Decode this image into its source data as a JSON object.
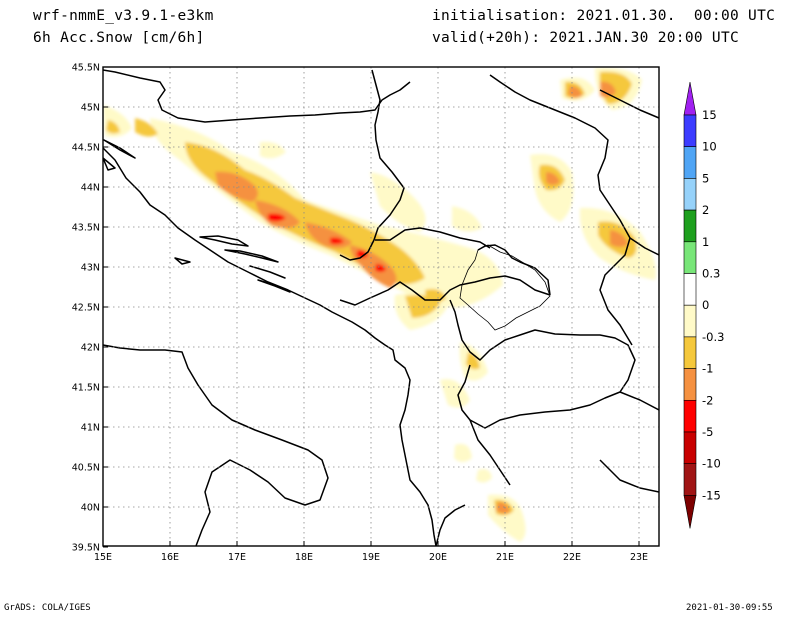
{
  "header": {
    "model": "wrf-nmmE_v3.9.1-e3km",
    "field": "6h Acc.Snow [cm/6h]",
    "initialisation": "initialisation: 2021.01.30.  00:00 UTC",
    "valid": "valid(+20h): 2021.JAN.30 20:00 UTC"
  },
  "footer": {
    "credit": "GrADS: COLA/IGES",
    "timestamp": "2021-01-30-09:55"
  },
  "map": {
    "lon_labels": [
      "15E",
      "16E",
      "17E",
      "18E",
      "19E",
      "20E",
      "21E",
      "22E",
      "23E"
    ],
    "lat_labels": [
      "45.5N",
      "45N",
      "44.5N",
      "44N",
      "43.5N",
      "43N",
      "42.5N",
      "42N",
      "41.5N",
      "41N",
      "40.5N",
      "40N",
      "39.5N"
    ],
    "grid": "dotted"
  },
  "colorbar": {
    "labels": [
      "15",
      "10",
      "5",
      "2",
      "1",
      "0.3",
      "0",
      "-0.3",
      "-1",
      "-2",
      "-5",
      "-10",
      "-15"
    ],
    "colors": [
      "#a020f0",
      "#3c3cff",
      "#50a5f5",
      "#96d2fa",
      "#1ea01e",
      "#78e678",
      "#ffffff",
      "#fffac8",
      "#f5c83c",
      "#f59141",
      "#ff0000",
      "#c80000",
      "#a01414",
      "#7d0000"
    ]
  }
}
